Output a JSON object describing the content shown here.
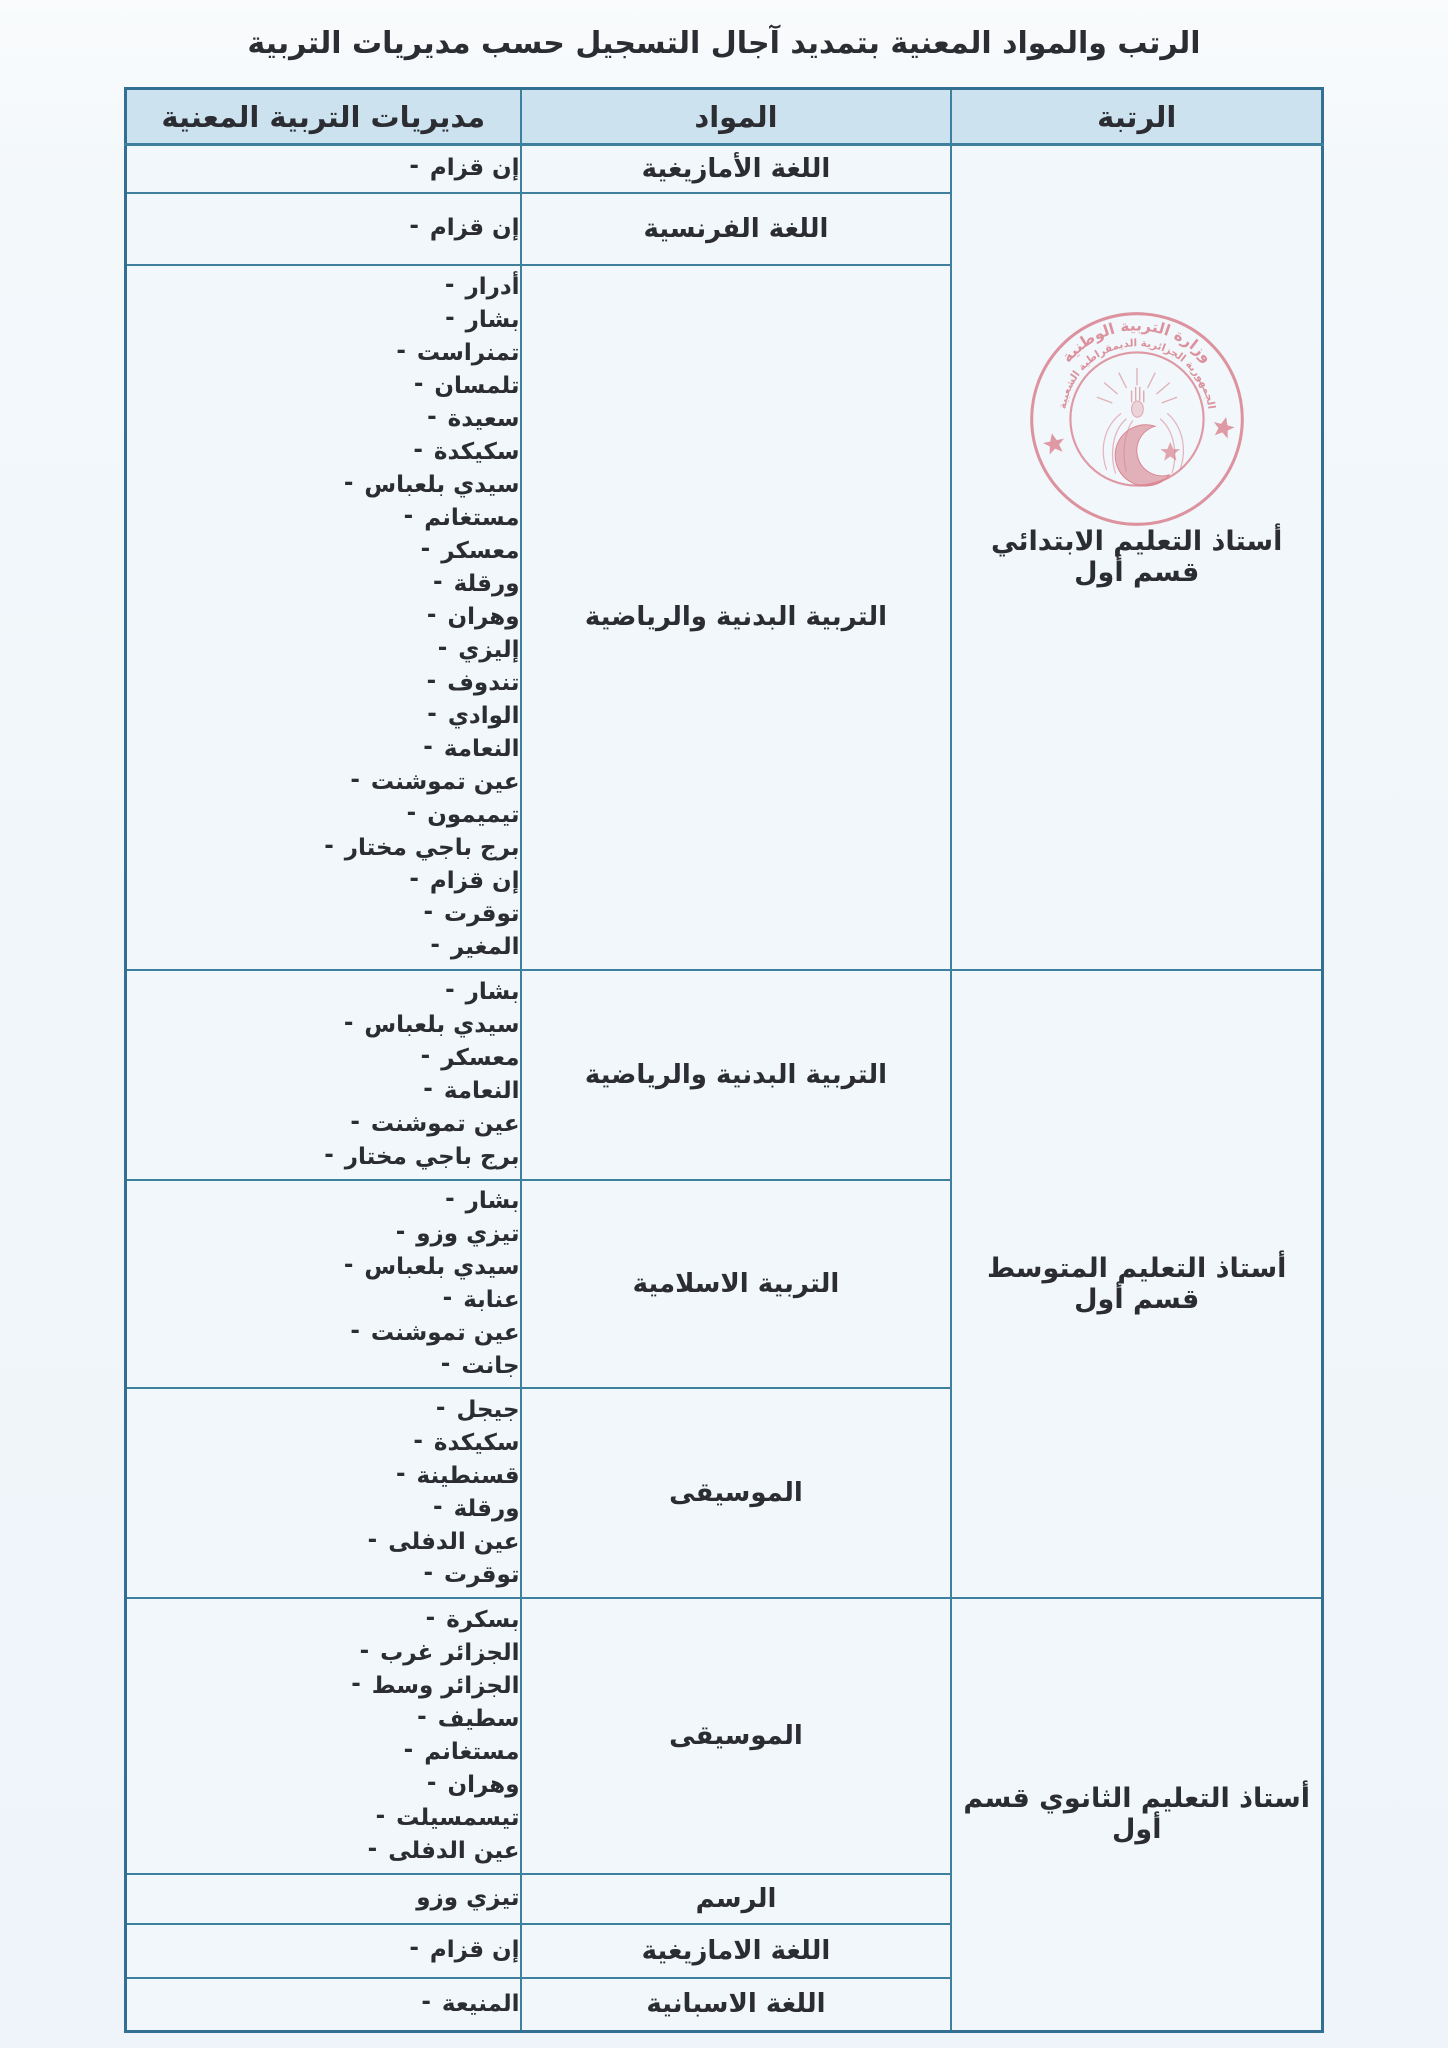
{
  "page": {
    "title": "الرتب والمواد المعنية بتمديد آجال التسجيل حسب مديريات التربية"
  },
  "table": {
    "headers": {
      "rank": "الرتبة",
      "subjects": "المواد",
      "directorates": "مديريات التربية المعنية"
    },
    "sections": [
      {
        "rank": "أستاذ التعليم الابتدائي قسم أول",
        "has_stamp": true,
        "rows": [
          {
            "subject": "اللغة الأمازيغية",
            "dashed": true,
            "directorates": [
              "إن قزام"
            ]
          },
          {
            "subject": "اللغة الفرنسية",
            "dashed": true,
            "directorates": [
              "إن قزام"
            ]
          },
          {
            "subject": "التربية البدنية والرياضية",
            "dashed": true,
            "directorates": [
              "أدرار",
              "بشار",
              "تمنراست",
              "تلمسان",
              "سعيدة",
              "سكيكدة",
              "سيدي بلعباس",
              "مستغانم",
              "معسكر",
              "ورقلة",
              "وهران",
              "إليزي",
              "تندوف",
              "الوادي",
              "النعامة",
              "عين تموشنت",
              "تيميمون",
              "برج باجي مختار",
              "إن قزام",
              "توقرت",
              "المغير"
            ]
          }
        ]
      },
      {
        "rank": "أستاذ التعليم المتوسط قسم أول",
        "has_stamp": false,
        "rows": [
          {
            "subject": "التربية البدنية والرياضية",
            "dashed": true,
            "directorates": [
              "بشار",
              "سيدي بلعباس",
              "معسكر",
              "النعامة",
              "عين تموشنت",
              "برج باجي مختار"
            ]
          },
          {
            "subject": "التربية الاسلامية",
            "dashed": true,
            "directorates": [
              "بشار",
              "تيزي وزو",
              "سيدي بلعباس",
              "عنابة",
              "عين تموشنت",
              "جانت"
            ]
          },
          {
            "subject": "الموسيقى",
            "dashed": true,
            "directorates": [
              "جيجل",
              "سكيكدة",
              "قسنطينة",
              "ورقلة",
              "عين الدفلى",
              "توقرت"
            ]
          }
        ]
      },
      {
        "rank": "أستاذ التعليم الثانوي قسم أول",
        "has_stamp": false,
        "rows": [
          {
            "subject": "الموسيقى",
            "dashed": true,
            "directorates": [
              "بسكرة",
              "الجزائر غرب",
              "الجزائر وسط",
              "سطيف",
              "مستغانم",
              "وهران",
              "تيسمسيلت",
              "عين الدفلى"
            ]
          },
          {
            "subject": "الرسم",
            "dashed": false,
            "directorates": [
              "تيزي وزو"
            ]
          },
          {
            "subject": "اللغة الامازيغية",
            "dashed": true,
            "directorates": [
              "إن قزام"
            ]
          },
          {
            "subject": "اللغة الاسبانية",
            "dashed": true,
            "directorates": [
              "المنيعة"
            ]
          }
        ]
      }
    ]
  },
  "stamp": {
    "ministry_text": "وزارة التربية الوطنية",
    "republic_text": "الجمهورية الجزائرية الديمقراطية الشعبية",
    "color": "#d9818e"
  },
  "colors": {
    "border": "#40809f",
    "header_bg": "#cde2ef",
    "page_bg": "#f3f8fb",
    "text": "#2b2d33",
    "stamp": "#d9818e"
  }
}
